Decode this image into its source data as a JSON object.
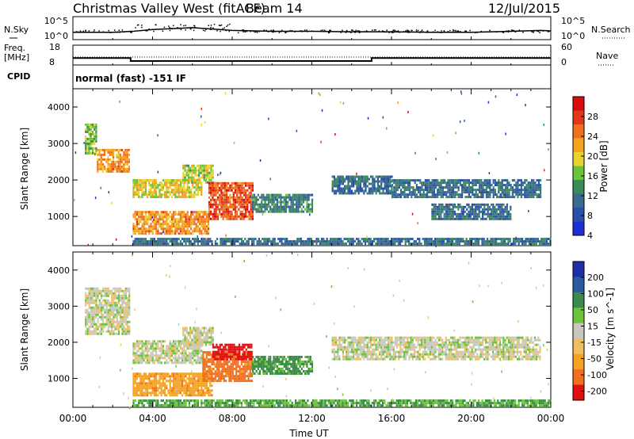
{
  "header": {
    "title": "Christmas Valley West (fitACF)",
    "beam": "Beam 14",
    "date": "12/Jul/2015"
  },
  "sky_panel": {
    "left_label": "N.Sky",
    "right_label": "N.Search",
    "left_ticks": [
      "10^5",
      "10^0"
    ],
    "right_ticks": [
      "10^5",
      "10^0"
    ]
  },
  "freq_panel": {
    "left_label_1": "Freq.",
    "left_label_2": "[MHz]",
    "right_label": "Nave",
    "left_ticks": [
      "18",
      "8"
    ],
    "right_ticks": [
      "60",
      "0"
    ]
  },
  "cpid": {
    "label": "CPID",
    "value": "normal (fast) -151 IF"
  },
  "chart_data": [
    {
      "type": "line",
      "name": "sky-search-noise",
      "x": [
        0,
        2,
        3,
        4,
        5,
        6,
        7,
        8,
        10,
        12,
        14,
        16,
        18,
        20,
        22,
        23.5,
        24
      ],
      "series": [
        {
          "values": [
            1.6,
            1.6,
            1.8,
            2.2,
            2.4,
            2.6,
            2.3,
            2.0,
            1.8,
            1.8,
            1.7,
            1.7,
            1.6,
            1.6,
            1.8,
            2.0,
            1.9
          ]
        }
      ],
      "ylim": [
        0,
        5
      ]
    },
    {
      "type": "line",
      "name": "frequency-nave",
      "x": [
        0,
        2.9,
        2.9,
        15,
        15,
        24
      ],
      "series": [
        {
          "values": [
            11.5,
            11.5,
            10,
            10,
            11.5,
            11.5
          ]
        }
      ],
      "ylim": [
        8,
        18
      ]
    },
    {
      "type": "heatmap",
      "name": "power",
      "xlabel": "",
      "ylabel": "Slant Range [km]",
      "xlim": [
        0,
        24
      ],
      "ylim": [
        200,
        4500
      ],
      "y_ticks": [
        1000,
        2000,
        3000,
        4000
      ],
      "colorbar": {
        "label": "Power [dB]",
        "ticks": [
          "4",
          "8",
          "12",
          "16",
          "20",
          "24",
          "28"
        ],
        "range": [
          0,
          32
        ]
      },
      "regions": [
        {
          "t0": 0.6,
          "t1": 1.2,
          "r0": 2700,
          "r1": 3500,
          "value": 14
        },
        {
          "t0": 1.2,
          "t1": 2.8,
          "r0": 2200,
          "r1": 2800,
          "value": 22
        },
        {
          "t0": 3.0,
          "t1": 6.5,
          "r0": 1500,
          "r1": 2000,
          "value": 18
        },
        {
          "t0": 5.5,
          "t1": 7.0,
          "r0": 1900,
          "r1": 2400,
          "value": 16
        },
        {
          "t0": 3.0,
          "t1": 6.8,
          "r0": 500,
          "r1": 1100,
          "value": 22
        },
        {
          "t0": 6.8,
          "t1": 9.0,
          "r0": 900,
          "r1": 1900,
          "value": 26
        },
        {
          "t0": 9.0,
          "t1": 12.0,
          "r0": 1100,
          "r1": 1600,
          "value": 10
        },
        {
          "t0": 13.0,
          "t1": 16.0,
          "r0": 1600,
          "r1": 2100,
          "value": 8
        },
        {
          "t0": 16.0,
          "t1": 23.5,
          "r0": 1500,
          "r1": 2000,
          "value": 8
        },
        {
          "t0": 18.0,
          "t1": 22.0,
          "r0": 900,
          "r1": 1300,
          "value": 8
        },
        {
          "t0": 3.0,
          "t1": 24.0,
          "r0": 220,
          "r1": 400,
          "value": 8
        }
      ]
    },
    {
      "type": "heatmap",
      "name": "velocity",
      "xlabel": "Time UT",
      "ylabel": "Slant Range [km]",
      "xlim": [
        0,
        24
      ],
      "ylim": [
        200,
        4500
      ],
      "x_ticks": [
        "00:00",
        "04:00",
        "08:00",
        "12:00",
        "16:00",
        "20:00",
        "00:00"
      ],
      "y_ticks": [
        1000,
        2000,
        3000,
        4000
      ],
      "colorbar": {
        "label": "Velocity [m s^-1]",
        "ticks": [
          "200",
          "100",
          "50",
          "15",
          "-15",
          "-50",
          "-100",
          "-200"
        ]
      },
      "regions": [
        {
          "t0": 0.6,
          "t1": 2.8,
          "r0": 2200,
          "r1": 3500,
          "value": 0
        },
        {
          "t0": 3.0,
          "t1": 6.5,
          "r0": 1400,
          "r1": 2000,
          "value": 0
        },
        {
          "t0": 5.5,
          "t1": 7.0,
          "r0": 1900,
          "r1": 2400,
          "value": 0
        },
        {
          "t0": 3.0,
          "t1": 7.0,
          "r0": 500,
          "r1": 1100,
          "value": -60
        },
        {
          "t0": 6.5,
          "t1": 9.0,
          "r0": 900,
          "r1": 1700,
          "value": -90
        },
        {
          "t0": 7.0,
          "t1": 9.0,
          "r0": 1500,
          "r1": 1900,
          "value": -250
        },
        {
          "t0": 9.0,
          "t1": 12.0,
          "r0": 1100,
          "r1": 1600,
          "value": 40
        },
        {
          "t0": 13.0,
          "t1": 23.5,
          "r0": 1500,
          "r1": 2100,
          "value": 0
        },
        {
          "t0": 3.0,
          "t1": 24.0,
          "r0": 220,
          "r1": 400,
          "value": 30
        }
      ]
    }
  ]
}
